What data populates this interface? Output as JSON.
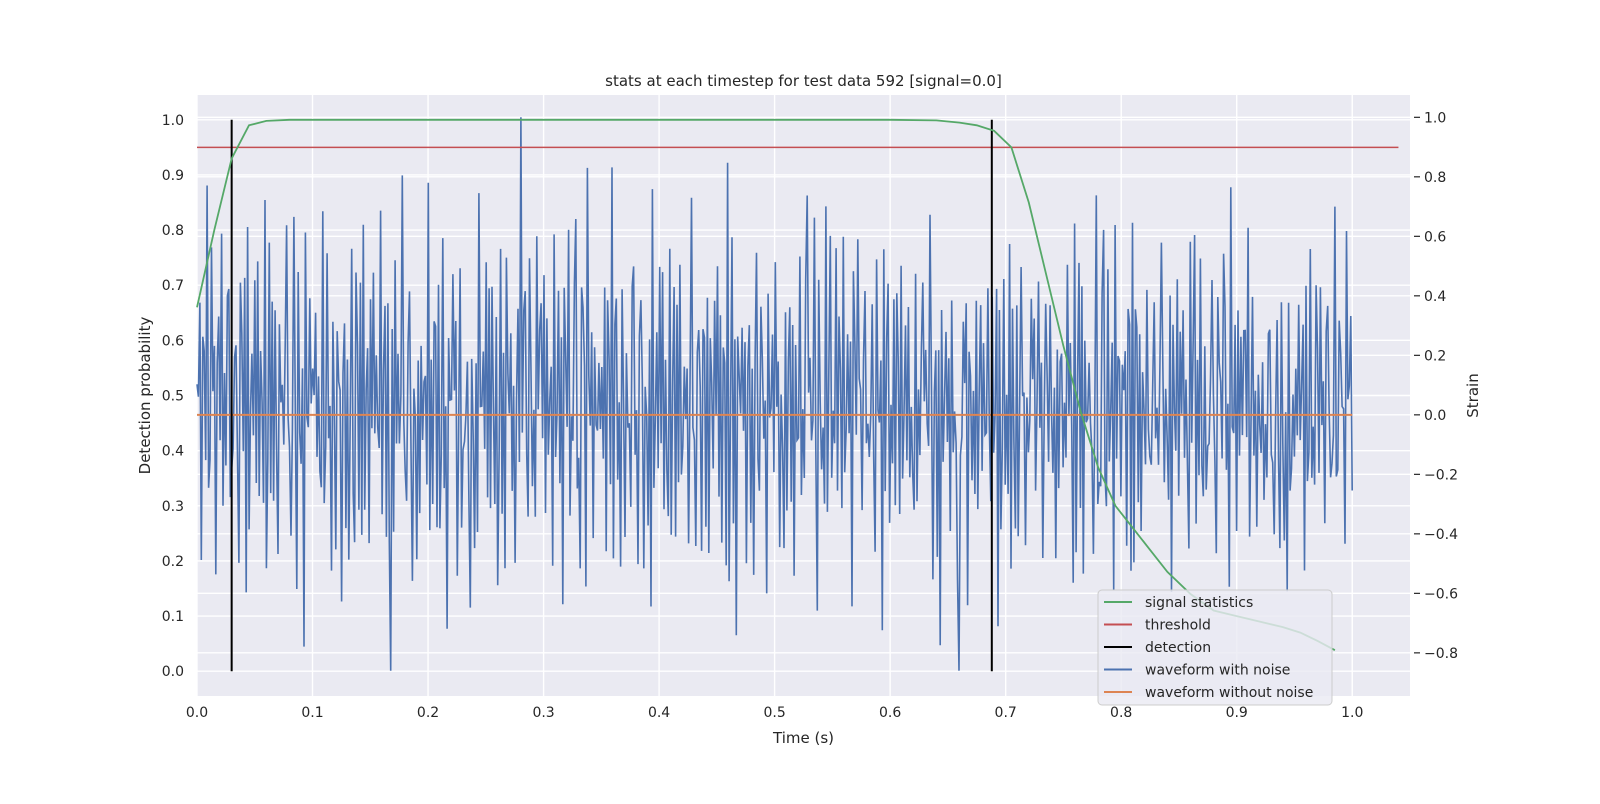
{
  "chart_data": {
    "type": "line",
    "title": "stats at each timestep for test data 592 [signal=0.0]",
    "xlabel": "Time (s)",
    "ylabel": "Detection probability",
    "y2label": "Strain",
    "xlim": [
      0.0,
      1.05
    ],
    "ylim": [
      -0.045,
      1.045
    ],
    "y2lim": [
      -0.945,
      1.075
    ],
    "grid": true,
    "background": "#eaeaf2",
    "legend_position": "lower-right",
    "x_ticks": [
      "0.0",
      "0.1",
      "0.2",
      "0.3",
      "0.4",
      "0.5",
      "0.6",
      "0.7",
      "0.8",
      "0.9",
      "1.0"
    ],
    "y_ticks": [
      "0.0",
      "0.1",
      "0.2",
      "0.3",
      "0.4",
      "0.5",
      "0.6",
      "0.7",
      "0.8",
      "0.9",
      "1.0"
    ],
    "y2_ticks": [
      "−0.8",
      "−0.6",
      "−0.4",
      "−0.2",
      "0.0",
      "0.2",
      "0.4",
      "0.6",
      "0.8",
      "1.0"
    ],
    "y2_tick_values": [
      -0.8,
      -0.6,
      -0.4,
      -0.2,
      0.0,
      0.2,
      0.4,
      0.6,
      0.8,
      1.0
    ],
    "series": [
      {
        "name": "signal statistics",
        "color": "#55a868",
        "axis": "left",
        "x": [
          0.0,
          0.015,
          0.03,
          0.045,
          0.06,
          0.08,
          0.1,
          0.2,
          0.3,
          0.4,
          0.5,
          0.6,
          0.64,
          0.66,
          0.675,
          0.69,
          0.705,
          0.72,
          0.735,
          0.75,
          0.765,
          0.78,
          0.795,
          0.81,
          0.825,
          0.84,
          0.86,
          0.88,
          0.9,
          0.92,
          0.94,
          0.955,
          0.97,
          0.985
        ],
        "y": [
          0.66,
          0.8,
          0.93,
          0.99,
          0.998,
          1.0,
          1.0,
          1.0,
          1.0,
          1.0,
          1.0,
          1.0,
          0.999,
          0.995,
          0.99,
          0.98,
          0.95,
          0.85,
          0.72,
          0.59,
          0.47,
          0.37,
          0.3,
          0.26,
          0.22,
          0.18,
          0.14,
          0.11,
          0.1,
          0.09,
          0.08,
          0.07,
          0.055,
          0.038
        ]
      },
      {
        "name": "threshold",
        "color": "#c44e52",
        "axis": "left",
        "x": [
          0.0,
          1.04
        ],
        "y": [
          0.95,
          0.95
        ]
      },
      {
        "name": "detection",
        "color": "#000000",
        "axis": "left",
        "x_positions": [
          0.03,
          0.688
        ],
        "y_range": [
          0.0,
          1.0
        ]
      },
      {
        "name": "waveform with noise",
        "color": "#4c72b0",
        "axis": "right",
        "x_range": [
          0.0,
          1.0
        ],
        "n_points": 800,
        "notable_values": {
          "max": 1.0,
          "min": -0.86
        },
        "y_sample": [
          0.31,
          -0.15,
          0.52,
          -0.3,
          0.27,
          0.06,
          -0.37,
          0.7,
          -0.4,
          0.12,
          0.45,
          -0.18,
          0.22,
          -0.55,
          0.33,
          0.08,
          -0.25,
          0.41,
          -0.11,
          0.15,
          -0.42,
          0.28,
          0.63,
          -0.2,
          0.05,
          -0.33,
          0.19,
          0.5,
          -0.08,
          -0.47,
          0.36,
          0.12,
          -0.29,
          0.24,
          -0.6,
          0.58,
          -0.13,
          0.02,
          0.39,
          -0.22
        ]
      },
      {
        "name": "waveform without noise",
        "color": "#dd8452",
        "axis": "right",
        "x": [
          0.0,
          1.0
        ],
        "y": [
          0.0,
          0.0
        ]
      }
    ]
  }
}
